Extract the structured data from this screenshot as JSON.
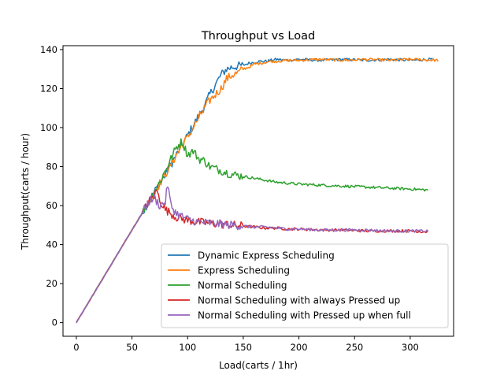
{
  "chart_data": {
    "type": "line",
    "title": "Throughput vs Load",
    "xlabel": "Load(carts / 1hr)",
    "ylabel": "Throughput(carts / hour)",
    "xlim": [
      -12,
      339
    ],
    "ylim": [
      -7,
      142
    ],
    "xticks": [
      0,
      50,
      100,
      150,
      200,
      250,
      300
    ],
    "yticks": [
      0,
      20,
      40,
      60,
      80,
      100,
      120,
      140
    ],
    "grid": false,
    "legend_position": "lower-right",
    "series": [
      {
        "name": "Dynamic Express Scheduling",
        "color": "#1f77b4",
        "x": [
          0,
          10,
          20,
          30,
          40,
          50,
          60,
          70,
          80,
          90,
          95,
          100,
          105,
          110,
          115,
          120,
          125,
          130,
          135,
          140,
          145,
          150,
          155,
          160,
          165,
          170,
          175,
          180,
          190,
          200,
          220,
          240,
          260,
          280,
          300,
          320
        ],
        "y": [
          0,
          9.5,
          19,
          28.5,
          38,
          47.5,
          57,
          67,
          76,
          86,
          91,
          96,
          101,
          106,
          111,
          117,
          122,
          127,
          130,
          131,
          131.5,
          132,
          133,
          133.5,
          134,
          134,
          134.5,
          135,
          134.5,
          135,
          134.5,
          135,
          134.5,
          135,
          134.5,
          135
        ]
      },
      {
        "name": "Express Scheduling",
        "color": "#ff7f0e",
        "x": [
          0,
          10,
          20,
          30,
          40,
          50,
          60,
          70,
          80,
          90,
          95,
          100,
          105,
          110,
          115,
          120,
          125,
          130,
          135,
          140,
          145,
          150,
          155,
          160,
          165,
          170,
          175,
          180,
          190,
          200,
          220,
          240,
          260,
          280,
          300,
          325
        ],
        "y": [
          0,
          9.5,
          19,
          28.5,
          38,
          47.5,
          57,
          67,
          76,
          86,
          91,
          95,
          100,
          105,
          110,
          114,
          117,
          120,
          125,
          127,
          128,
          130,
          131,
          132.5,
          133,
          133.5,
          134,
          134,
          134.5,
          134.5,
          135,
          134.5,
          135,
          134.5,
          135,
          134.5
        ]
      },
      {
        "name": "Normal Scheduling",
        "color": "#2ca02c",
        "x": [
          0,
          10,
          20,
          30,
          40,
          50,
          60,
          70,
          75,
          80,
          85,
          90,
          95,
          100,
          105,
          110,
          115,
          120,
          125,
          130,
          135,
          140,
          145,
          150,
          160,
          170,
          180,
          190,
          200,
          220,
          240,
          260,
          280,
          300,
          316
        ],
        "y": [
          0,
          9.5,
          19,
          28.5,
          38,
          47.5,
          57,
          67,
          72,
          78,
          84,
          90,
          93,
          86,
          88,
          84,
          83,
          80,
          79,
          78,
          77,
          76,
          75.5,
          75,
          74,
          73,
          72,
          71.5,
          71,
          70.5,
          70,
          69.5,
          69,
          68.5,
          68
        ]
      },
      {
        "name": "Normal Scheduling with always Pressed up",
        "color": "#d62728",
        "x": [
          0,
          10,
          20,
          30,
          40,
          50,
          60,
          65,
          70,
          72,
          75,
          80,
          85,
          90,
          100,
          110,
          120,
          130,
          140,
          150,
          160,
          170,
          180,
          190,
          200,
          220,
          240,
          260,
          280,
          300,
          316
        ],
        "y": [
          0,
          9.5,
          19,
          28.5,
          38,
          47.5,
          57,
          62,
          65,
          68,
          63,
          58,
          56,
          54,
          52.5,
          51.5,
          51,
          50.5,
          50,
          49.5,
          49,
          48.5,
          48.5,
          48,
          48,
          47.5,
          47.5,
          47,
          47,
          47,
          46.5
        ]
      },
      {
        "name": "Normal Scheduling with Pressed up when full",
        "color": "#9467bd",
        "x": [
          0,
          10,
          20,
          30,
          40,
          50,
          60,
          65,
          70,
          75,
          80,
          82,
          85,
          90,
          100,
          110,
          120,
          130,
          140,
          150,
          160,
          170,
          180,
          190,
          200,
          220,
          240,
          260,
          280,
          300,
          316
        ],
        "y": [
          0,
          9.5,
          19,
          28.5,
          38,
          47.5,
          57,
          62,
          64,
          60,
          62,
          71,
          60,
          56,
          53,
          51.5,
          51,
          50.5,
          50,
          49.5,
          49,
          49,
          48.5,
          48,
          48,
          47.5,
          47.5,
          47.5,
          47,
          47,
          47
        ]
      }
    ]
  }
}
